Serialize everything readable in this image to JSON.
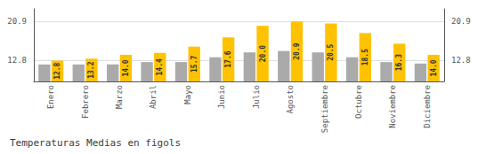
{
  "chart_data": {
    "type": "bar",
    "title": "Temperaturas Medias en figols",
    "categories": [
      "Enero",
      "Febrero",
      "Marzo",
      "Abril",
      "Mayo",
      "Junio",
      "Julio",
      "Agosto",
      "Septiembre",
      "Octubre",
      "Noviembre",
      "Diciembre"
    ],
    "series": [
      {
        "color": "#AAAAAA",
        "values": [
          12.0,
          12.0,
          12.0,
          12.5,
          12.5,
          13.5,
          14.5,
          14.8,
          14.5,
          13.5,
          12.5,
          12.2
        ]
      },
      {
        "color": "#FFC200",
        "values": [
          12.8,
          13.2,
          14.0,
          14.4,
          15.7,
          17.6,
          20.0,
          20.9,
          20.5,
          18.5,
          16.3,
          14.0
        ],
        "value_labels": [
          "12.8",
          "13.2",
          "14.0",
          "14.4",
          "15.7",
          "17.6",
          "20.0",
          "20.9",
          "20.5",
          "18.5",
          "16.3",
          "14.0"
        ],
        "data_labels": true
      }
    ],
    "ylim": [
      8.5,
      23.5
    ],
    "yticks": [
      12.8,
      20.9
    ],
    "y2lim": [
      8.5,
      23.5
    ],
    "y2ticks": [
      12.8,
      20.9
    ],
    "grid": true
  }
}
